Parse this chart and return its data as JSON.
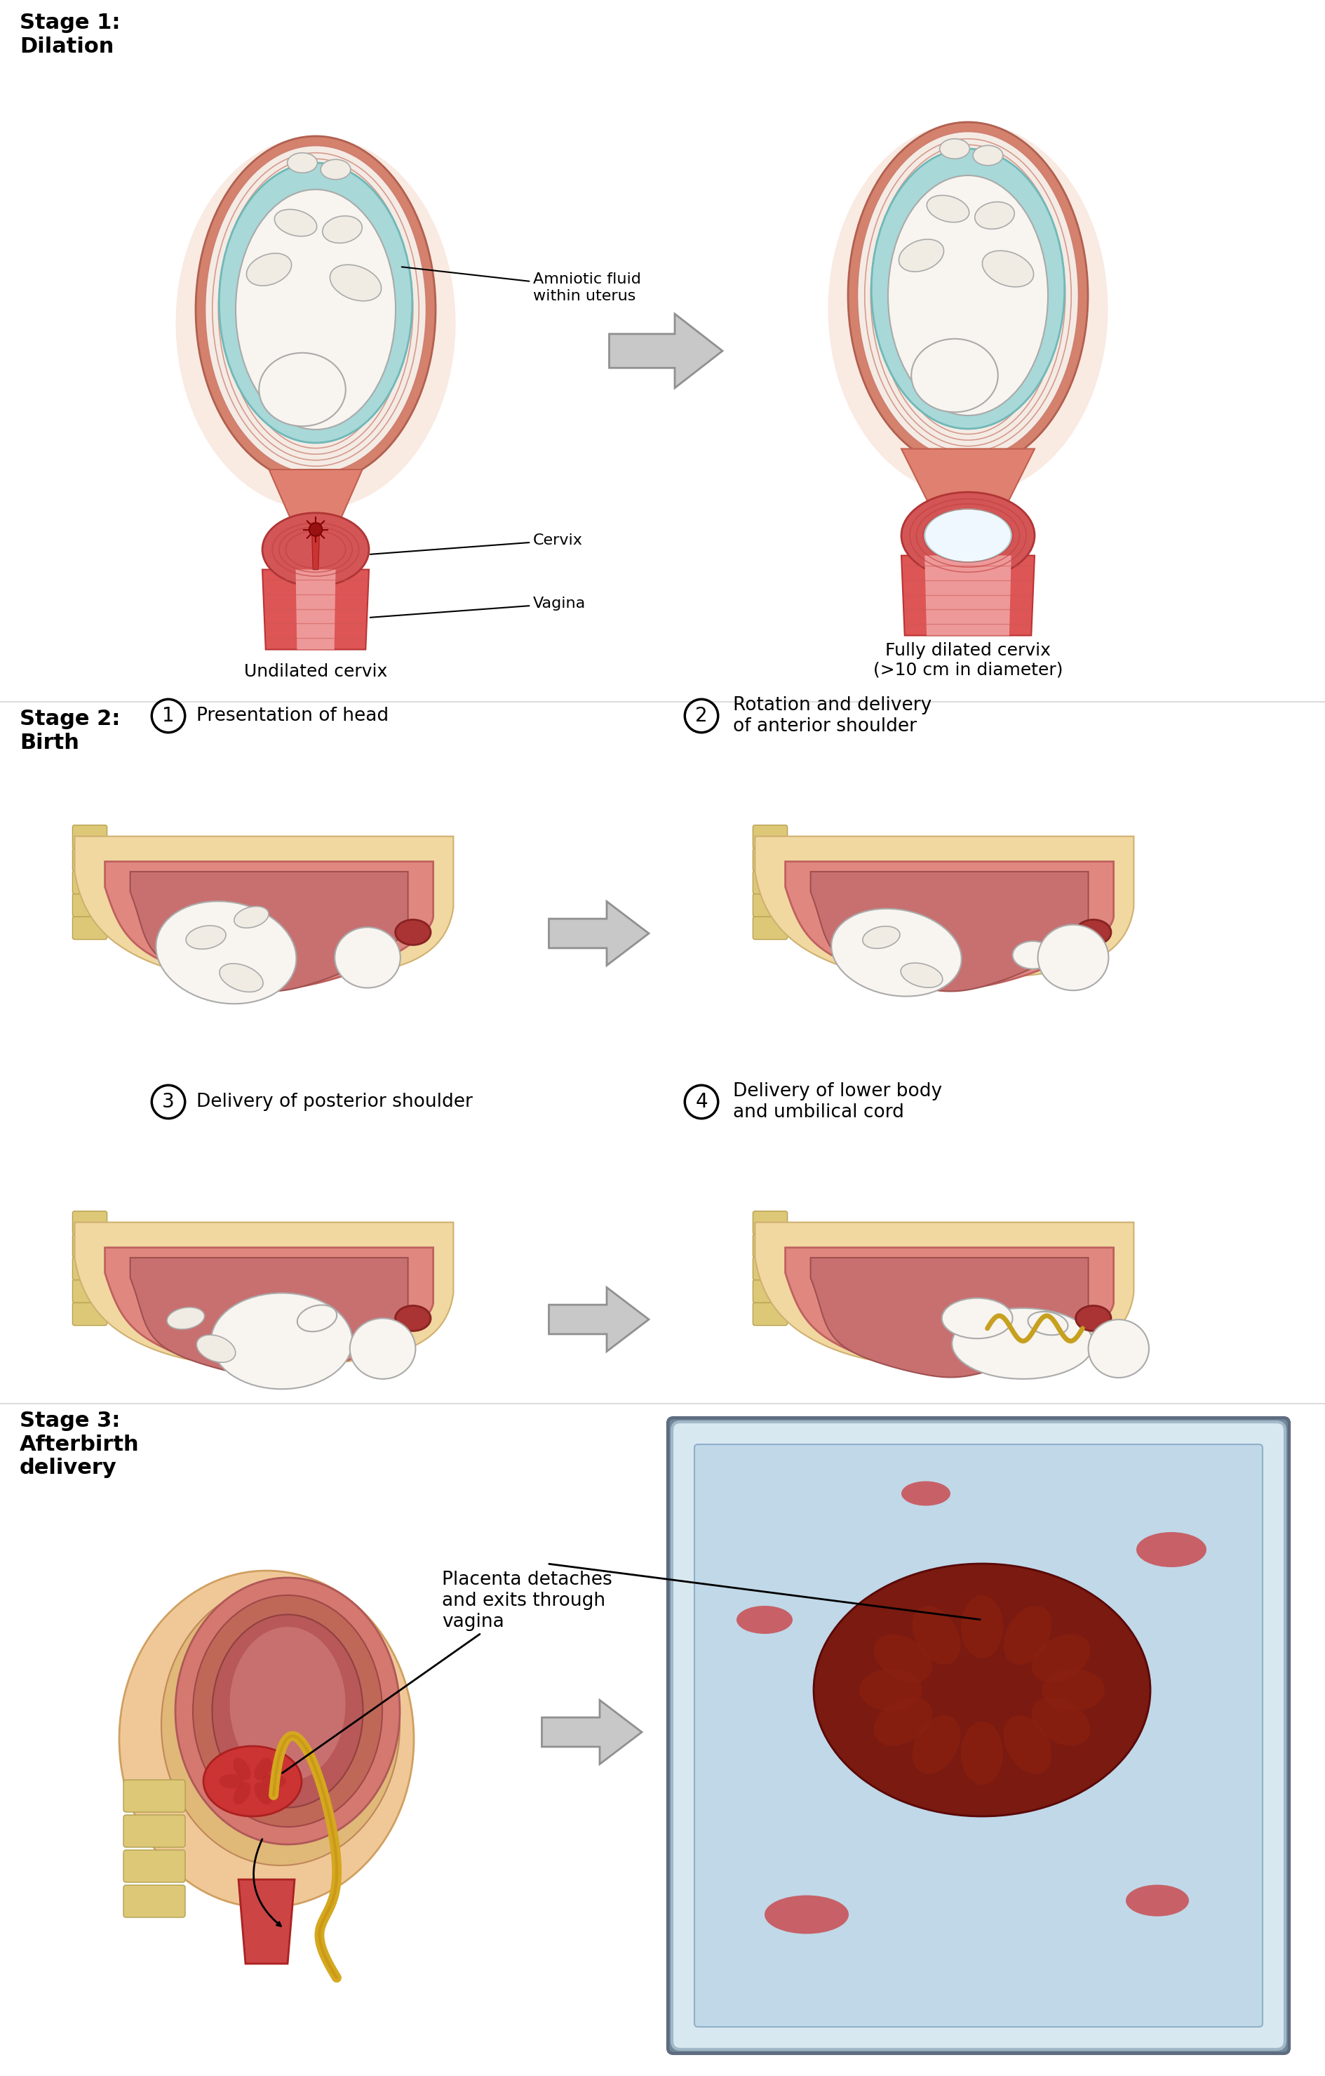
{
  "background_color": "#ffffff",
  "stage1_label": "Stage 1:\nDilation",
  "stage2_label": "Stage 2:\nBirth",
  "stage3_label": "Stage 3:\nAfterbirth\ndelivery",
  "panel1_left_caption": "Undilated cervix",
  "panel1_right_caption": "Fully dilated cervix\n(>10 cm in diameter)",
  "panel2_labels": [
    "Presentation of head",
    "Rotation and delivery\nof anterior shoulder",
    "Delivery of posterior shoulder",
    "Delivery of lower body\nand umbilical cord"
  ],
  "panel2_numbers": [
    "1",
    "2",
    "3",
    "4"
  ],
  "panel3_annotation": "Placenta detaches\nand exits through\nvagina",
  "annotations_stage1": [
    "Amniotic fluid\nwithin uterus",
    "Cervix",
    "Vagina"
  ],
  "stage_label_fontsize": 22,
  "caption_fontsize": 18,
  "label_fontsize": 19,
  "annot_fontsize": 16,
  "text_color": "#000000",
  "glow_color": "#f5ddd0",
  "outer_wall_color": "#d4826e",
  "muscle_colors": [
    "#e8a090",
    "#d98070",
    "#ca6860"
  ],
  "amniotic_color": "#a8d8d8",
  "baby_color": "#f5f0ea",
  "baby_edge": "#aaaaaa",
  "cervix_red": "#cc3333",
  "vagina_red": "#dd4444",
  "vagina_inner": "#ee8888",
  "dilated_open": "#f0f0f0",
  "skin_colors": [
    "#f0d8b0",
    "#e0c090",
    "#d0a870",
    "#c09060"
  ],
  "birth_canal_color": "#cc6666",
  "birth_canal_dark": "#aa4444",
  "cord_color": "#c8a020",
  "uterus_s3_outer": "#e09080",
  "uterus_s3_inner": "#d07060",
  "placenta_s3_color": "#cc3333",
  "photo_tray_outer": "#7090a8",
  "photo_tray_inner": "#a8c4d8",
  "photo_bg": "#b0cce0",
  "placenta_photo_color": "#7a1818",
  "blood_color": "#cc2222",
  "arrow_body": "#c8c8c8",
  "arrow_edge": "#909090",
  "line_color": "#dddddd"
}
